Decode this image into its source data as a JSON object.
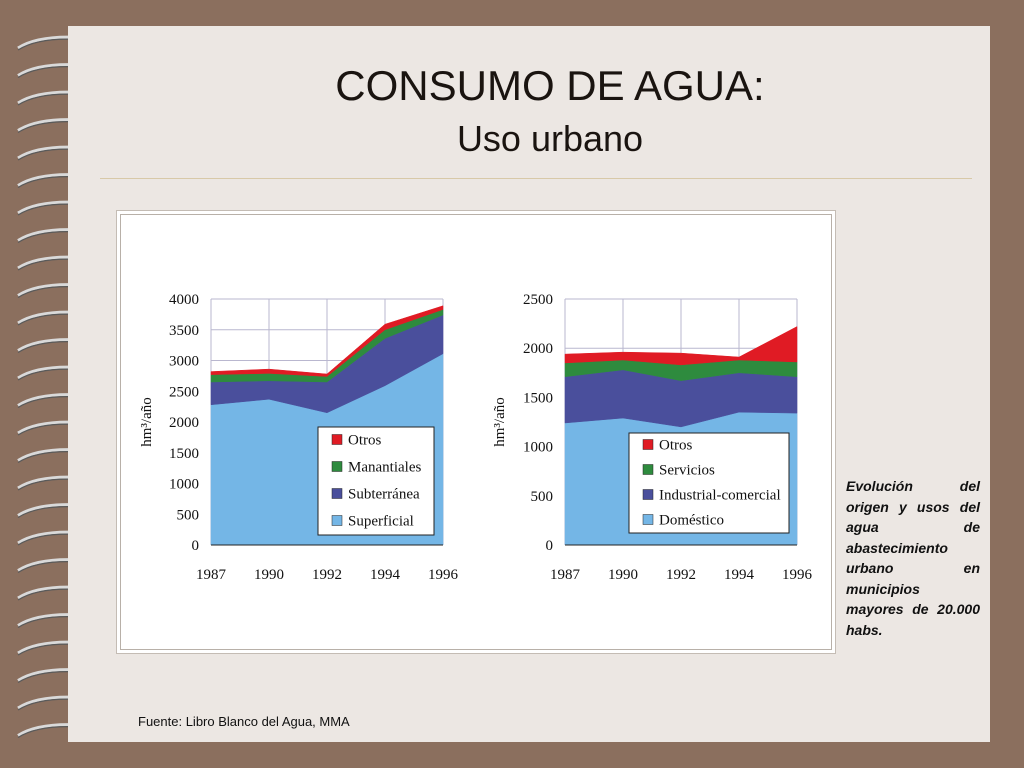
{
  "slide": {
    "title": "CONSUMO DE AGUA:",
    "subtitle": "Uso urbano",
    "caption": "Evolución del origen y usos del agua de abastecimiento urbano en municipios mayores de 20.000 habs.",
    "source": "Fuente: Libro Blanco del Agua, MMA"
  },
  "icons": {
    "binding": "spiral-binding-icon"
  },
  "colors": {
    "background": "#8b6f5e",
    "page": "#ece7e3",
    "otros": "#e01b24",
    "green": "#2e8b3e",
    "blue": "#4a4f9c",
    "light_blue": "#74b6e6"
  },
  "chart_data": [
    {
      "type": "area",
      "stacked": true,
      "x": [
        1987,
        1990,
        1992,
        1994,
        1996
      ],
      "ylabel": "hm³/año",
      "ylim": [
        0,
        4000
      ],
      "yticks": [
        0,
        500,
        1000,
        1500,
        2000,
        2500,
        3000,
        3500,
        4000
      ],
      "grid": true,
      "legend": "inside-bottom-right",
      "series": [
        {
          "name": "Superficial",
          "values": [
            2280,
            2370,
            2150,
            2590,
            3110
          ],
          "color": "#74b6e6"
        },
        {
          "name": "Subterránea",
          "values": [
            370,
            300,
            500,
            770,
            630
          ],
          "color": "#4a4f9c"
        },
        {
          "name": "Manantiales",
          "values": [
            120,
            120,
            90,
            140,
            90
          ],
          "color": "#2e8b3e"
        },
        {
          "name": "Otros",
          "values": [
            50,
            70,
            40,
            90,
            60
          ],
          "color": "#e01b24"
        }
      ]
    },
    {
      "type": "area",
      "stacked": true,
      "x": [
        1987,
        1990,
        1992,
        1994,
        1996
      ],
      "ylabel": "hm³/año",
      "ylim": [
        0,
        2500
      ],
      "yticks": [
        0,
        500,
        1000,
        1500,
        2000,
        2500
      ],
      "grid": true,
      "legend": "inside-bottom-right",
      "series": [
        {
          "name": "Doméstico",
          "values": [
            1240,
            1290,
            1200,
            1350,
            1340
          ],
          "color": "#74b6e6"
        },
        {
          "name": "Industrial-comercial",
          "values": [
            470,
            490,
            470,
            400,
            370
          ],
          "color": "#4a4f9c"
        },
        {
          "name": "Servicios",
          "values": [
            140,
            100,
            160,
            130,
            150
          ],
          "color": "#2e8b3e"
        },
        {
          "name": "Otros",
          "values": [
            90,
            80,
            120,
            30,
            360
          ],
          "color": "#e01b24"
        }
      ]
    }
  ]
}
